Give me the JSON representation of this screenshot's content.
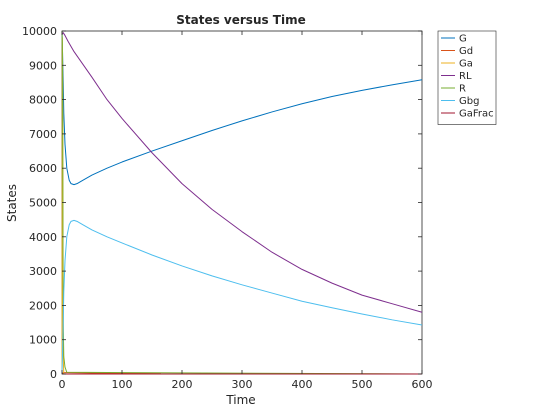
{
  "chart_data": {
    "type": "line",
    "title": "States versus Time",
    "xlabel": "Time",
    "ylabel": "States",
    "xlim": [
      0,
      600
    ],
    "ylim": [
      0,
      10000
    ],
    "xticks": [
      0,
      100,
      200,
      300,
      400,
      500,
      600
    ],
    "yticks": [
      0,
      1000,
      2000,
      3000,
      4000,
      5000,
      6000,
      7000,
      8000,
      9000,
      10000
    ],
    "grid": false,
    "legend_position": "top-right (outside plot)",
    "series": [
      {
        "name": "G",
        "color": "#0072BD",
        "x": [
          0,
          1,
          2,
          3,
          5,
          8,
          12,
          15,
          20,
          25,
          35,
          50,
          75,
          100,
          150,
          200,
          250,
          300,
          350,
          400,
          450,
          500,
          550,
          600
        ],
        "y": [
          10000,
          9300,
          8500,
          7600,
          6700,
          6000,
          5650,
          5550,
          5520,
          5550,
          5650,
          5800,
          6000,
          6180,
          6500,
          6800,
          7100,
          7380,
          7640,
          7880,
          8090,
          8270,
          8430,
          8580
        ]
      },
      {
        "name": "Gd",
        "color": "#D95319",
        "x": [
          0,
          2,
          10,
          50,
          100,
          165
        ],
        "y": [
          0,
          40,
          40,
          30,
          20,
          10
        ]
      },
      {
        "name": "Ga",
        "color": "#EDB120",
        "x": [
          0,
          0.5,
          1,
          1.5,
          2,
          3
        ],
        "y": [
          0,
          9800,
          9000,
          5000,
          500,
          0
        ]
      },
      {
        "name": "RL",
        "color": "#7E2F8E",
        "x": [
          0,
          2,
          5,
          10,
          20,
          50,
          75,
          100,
          150,
          200,
          250,
          300,
          350,
          400,
          450,
          500,
          550,
          600
        ],
        "y": [
          9900,
          9950,
          9870,
          9700,
          9400,
          8650,
          8000,
          7450,
          6450,
          5550,
          4800,
          4150,
          3550,
          3050,
          2650,
          2300,
          2050,
          1800
        ]
      },
      {
        "name": "R",
        "color": "#77AC30",
        "x": [
          0,
          0.5,
          1,
          1.5,
          2,
          3,
          5,
          8,
          600
        ],
        "y": [
          10000,
          9600,
          8500,
          5000,
          1500,
          500,
          200,
          50,
          0
        ]
      },
      {
        "name": "Gbg",
        "color": "#4DBEEE",
        "x": [
          0,
          1,
          2,
          3,
          5,
          8,
          12,
          15,
          20,
          25,
          35,
          50,
          75,
          100,
          150,
          200,
          250,
          300,
          350,
          400,
          450,
          500,
          550,
          600
        ],
        "y": [
          0,
          700,
          1500,
          2400,
          3300,
          4000,
          4350,
          4450,
          4480,
          4450,
          4350,
          4200,
          4000,
          3820,
          3470,
          3150,
          2860,
          2600,
          2360,
          2120,
          1930,
          1750,
          1580,
          1430
        ]
      },
      {
        "name": "GaFrac",
        "color": "#A2142F",
        "x": [
          0,
          600
        ],
        "y": [
          0,
          0
        ]
      }
    ]
  }
}
